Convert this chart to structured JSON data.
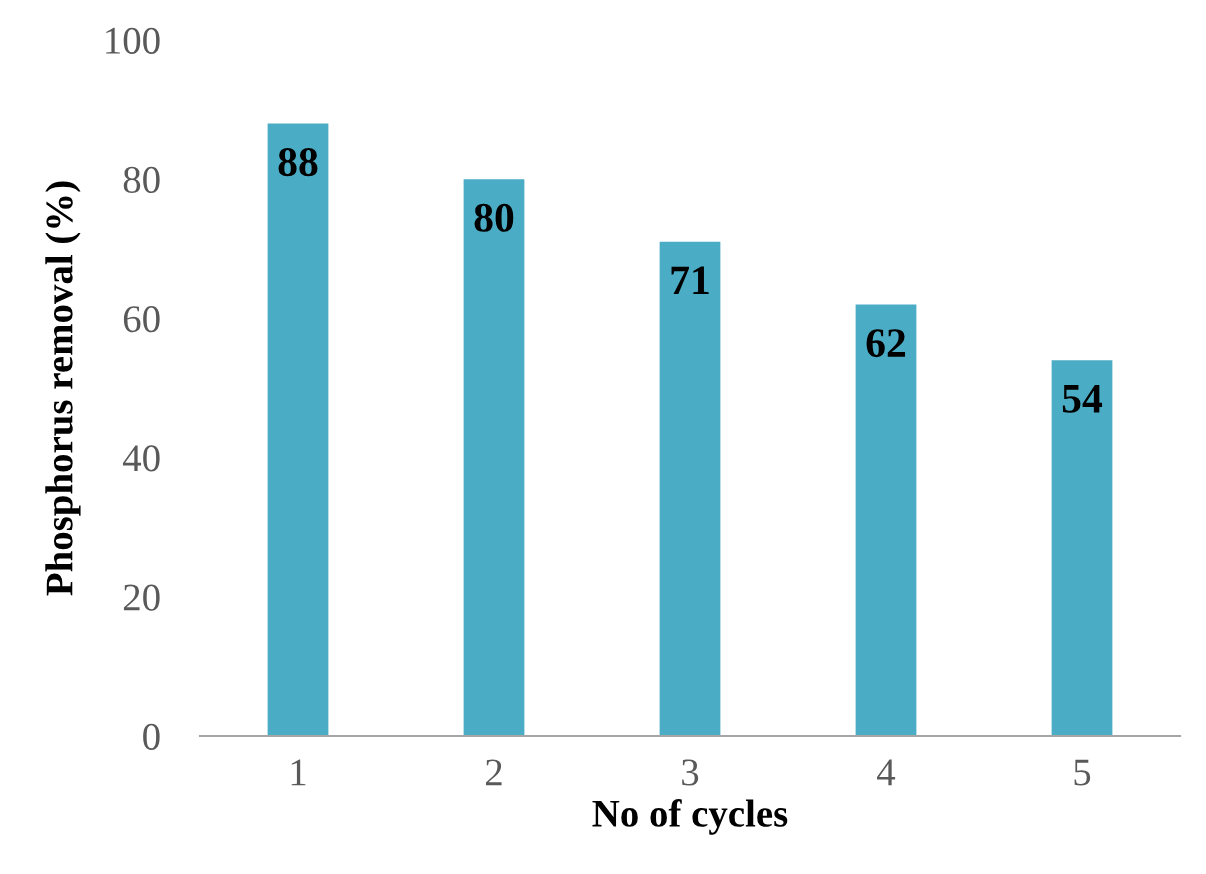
{
  "chart_data": {
    "type": "bar",
    "xlabel": "No of cycles",
    "ylabel": "Phosphorus removal (%)",
    "categories": [
      "1",
      "2",
      "3",
      "4",
      "5"
    ],
    "values": [
      88,
      80,
      71,
      62,
      54
    ],
    "color": "#4bacc6",
    "ylim": [
      0,
      100
    ],
    "yticks": [
      0,
      20,
      40,
      60,
      80,
      100
    ],
    "data_labels": true,
    "grid": false,
    "legend": false
  }
}
